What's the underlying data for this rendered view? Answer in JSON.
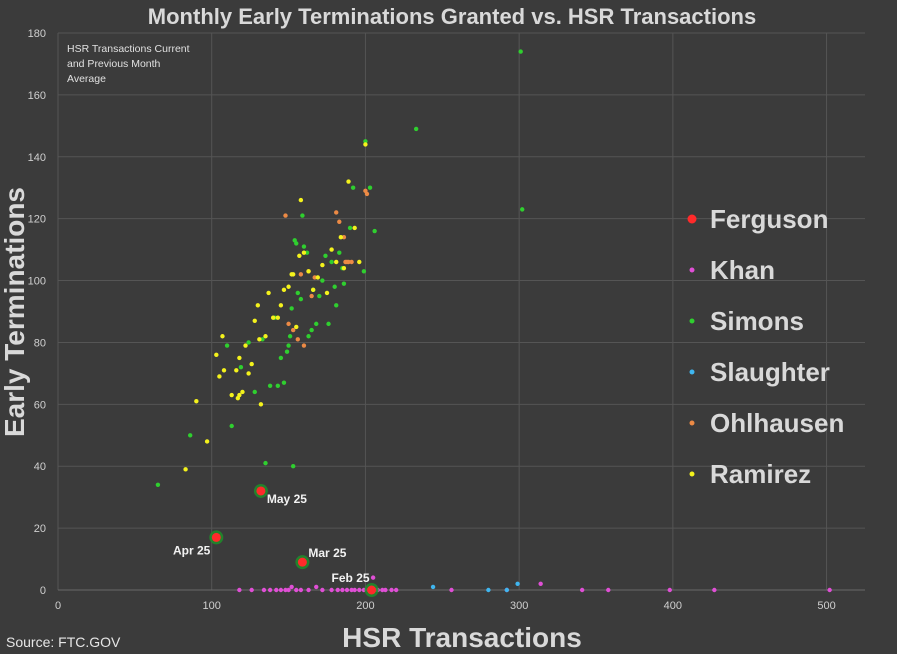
{
  "chart_data": {
    "type": "scatter",
    "title": "Monthly Early Terminations Granted vs. HSR Transactions",
    "xlabel": "HSR Transactions",
    "ylabel": "Early Terminations",
    "xlim": [
      0,
      525
    ],
    "ylim": [
      0,
      180
    ],
    "xticks": [
      0,
      100,
      200,
      300,
      400,
      500
    ],
    "yticks": [
      0,
      20,
      40,
      60,
      80,
      100,
      120,
      140,
      160,
      180
    ],
    "grid": true,
    "legend_position": "right",
    "note": [
      "HSR Transactions Current",
      "and Previous Month",
      "Average"
    ],
    "source": "Source: FTC.GOV",
    "series": [
      {
        "name": "Ferguson",
        "color": "#ff2a2a",
        "x": [
          103,
          132,
          159,
          204
        ],
        "y": [
          17,
          32,
          9,
          0
        ]
      },
      {
        "name": "Khan",
        "color": "#e04fd6",
        "x": [
          118,
          126,
          134,
          138,
          142,
          145,
          148,
          150,
          152,
          155,
          158,
          163,
          168,
          172,
          178,
          182,
          185,
          188,
          191,
          193,
          196,
          199,
          202,
          206,
          208,
          211,
          213,
          217,
          220,
          205,
          256,
          292,
          314,
          341,
          358,
          398,
          427,
          502
        ],
        "y": [
          0,
          0,
          0,
          0,
          0,
          0,
          0,
          0,
          1,
          0,
          0,
          0,
          1,
          0,
          0,
          0,
          0,
          0,
          0,
          0,
          0,
          0,
          0,
          0,
          0,
          0,
          0,
          0,
          0,
          4,
          0,
          0,
          2,
          0,
          0,
          0,
          0,
          0
        ]
      },
      {
        "name": "Simons",
        "color": "#2fcf2f",
        "x": [
          65,
          86,
          110,
          113,
          119,
          124,
          128,
          133,
          135,
          138,
          141,
          143,
          145,
          147,
          149,
          150,
          151,
          152,
          154,
          155,
          156,
          158,
          159,
          160,
          162,
          163,
          165,
          166,
          168,
          170,
          172,
          174,
          176,
          178,
          180,
          181,
          183,
          185,
          186,
          190,
          192,
          199,
          200,
          203,
          206,
          233,
          301,
          302,
          153
        ],
        "y": [
          34,
          50,
          79,
          53,
          72,
          80,
          64,
          81,
          41,
          66,
          88,
          66,
          75,
          67,
          77,
          79,
          82,
          91,
          113,
          112,
          96,
          94,
          121,
          111,
          109,
          82,
          84,
          97,
          86,
          95,
          100,
          108,
          86,
          106,
          98,
          92,
          109,
          104,
          99,
          117,
          130,
          103,
          145,
          130,
          116,
          149,
          174,
          123,
          40
        ]
      },
      {
        "name": "Slaughter",
        "color": "#3fb6f0",
        "x": [
          244,
          280,
          292,
          299
        ],
        "y": [
          1,
          0,
          0,
          2
        ]
      },
      {
        "name": "Ohlhausen",
        "color": "#ec8a45",
        "x": [
          148,
          150,
          153,
          156,
          158,
          160,
          163,
          165,
          167,
          181,
          183,
          186,
          187,
          188,
          189,
          191,
          200,
          201
        ],
        "y": [
          121,
          86,
          84,
          81,
          102,
          79,
          103,
          95,
          101,
          122,
          119,
          114,
          106,
          106,
          106,
          106,
          129,
          128
        ]
      },
      {
        "name": "Ramirez",
        "color": "#f4f21c",
        "x": [
          83,
          90,
          97,
          103,
          105,
          107,
          113,
          116,
          118,
          120,
          122,
          124,
          126,
          128,
          130,
          132,
          135,
          137,
          140,
          143,
          145,
          147,
          150,
          152,
          153,
          155,
          157,
          158,
          160,
          163,
          166,
          169,
          172,
          175,
          178,
          181,
          184,
          186,
          189,
          193,
          196,
          200,
          117,
          118,
          131,
          108
        ],
        "y": [
          39,
          61,
          48,
          76,
          69,
          82,
          63,
          71,
          75,
          64,
          79,
          70,
          73,
          87,
          92,
          60,
          82,
          96,
          88,
          88,
          92,
          97,
          98,
          102,
          102,
          85,
          108,
          126,
          109,
          103,
          97,
          101,
          105,
          96,
          110,
          106,
          114,
          104,
          132,
          117,
          106,
          144,
          62,
          63,
          81,
          71
        ]
      }
    ],
    "annotations": [
      {
        "text": "Apr 25",
        "x": 103,
        "y": 17
      },
      {
        "text": "May 25",
        "x": 132,
        "y": 32
      },
      {
        "text": "Mar 25",
        "x": 159,
        "y": 9
      },
      {
        "text": "Feb 25",
        "x": 204,
        "y": 0
      }
    ]
  }
}
